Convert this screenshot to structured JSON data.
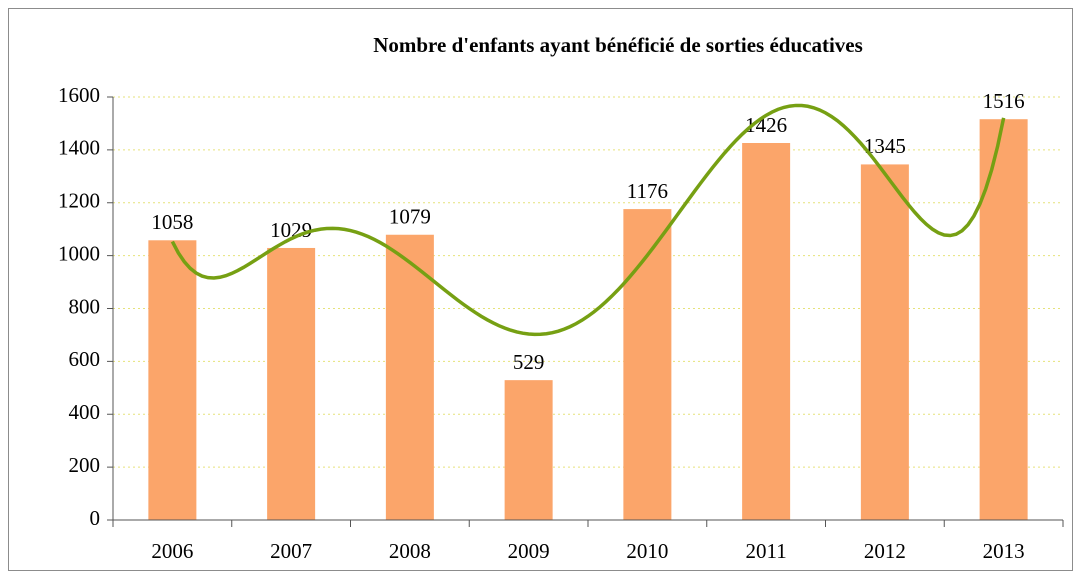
{
  "chart_data": {
    "type": "bar",
    "title": "Nombre d'enfants ayant bénéficié de sorties éducatives",
    "categories": [
      "2006",
      "2007",
      "2008",
      "2009",
      "2010",
      "2011",
      "2012",
      "2013"
    ],
    "values": [
      1058,
      1029,
      1079,
      529,
      1176,
      1426,
      1345,
      1516
    ],
    "color": "#fba56a",
    "ylim": [
      0,
      1600
    ],
    "yticks": [
      0,
      200,
      400,
      600,
      800,
      1000,
      1200,
      1400,
      1600
    ],
    "grid": true,
    "trendline": {
      "type": "polynomial",
      "order": 6,
      "color": "#76a013"
    }
  }
}
